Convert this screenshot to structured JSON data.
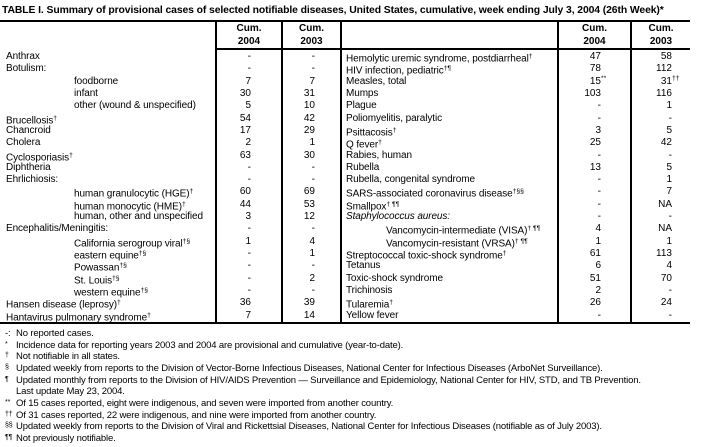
{
  "title": "TABLE I. Summary of provisional cases of selected notifiable diseases, United States, cumulative, week ending July 3, 2004 (26th Week)*",
  "columns": {
    "cum": "Cum.",
    "y2004": "2004",
    "y2003": "2003"
  },
  "left_table": {
    "rows": [
      {
        "name": "Anthrax",
        "nsup": "",
        "ind": 0,
        "it": 0,
        "c1": [
          "-",
          ""
        ],
        "c2": [
          "-",
          ""
        ]
      },
      {
        "name": "Botulism:",
        "nsup": "",
        "ind": 0,
        "it": 0,
        "c1": [
          "-",
          ""
        ],
        "c2": [
          "-",
          ""
        ]
      },
      {
        "name": "foodborne",
        "nsup": "",
        "ind": 1,
        "it": 0,
        "c1": [
          "7",
          ""
        ],
        "c2": [
          "7",
          ""
        ]
      },
      {
        "name": "infant",
        "nsup": "",
        "ind": 1,
        "it": 0,
        "c1": [
          "30",
          ""
        ],
        "c2": [
          "31",
          ""
        ]
      },
      {
        "name": "other (wound & unspecified)",
        "nsup": "",
        "ind": 1,
        "it": 0,
        "c1": [
          "5",
          ""
        ],
        "c2": [
          "10",
          ""
        ]
      },
      {
        "name": "Brucellosis",
        "nsup": "†",
        "ind": 0,
        "it": 0,
        "c1": [
          "54",
          ""
        ],
        "c2": [
          "42",
          ""
        ]
      },
      {
        "name": "Chancroid",
        "nsup": "",
        "ind": 0,
        "it": 0,
        "c1": [
          "17",
          ""
        ],
        "c2": [
          "29",
          ""
        ]
      },
      {
        "name": "Cholera",
        "nsup": "",
        "ind": 0,
        "it": 0,
        "c1": [
          "2",
          ""
        ],
        "c2": [
          "1",
          ""
        ]
      },
      {
        "name": "Cyclosporiasis",
        "nsup": "†",
        "ind": 0,
        "it": 0,
        "c1": [
          "63",
          ""
        ],
        "c2": [
          "30",
          ""
        ]
      },
      {
        "name": "Diphtheria",
        "nsup": "",
        "ind": 0,
        "it": 0,
        "c1": [
          "-",
          ""
        ],
        "c2": [
          "-",
          ""
        ]
      },
      {
        "name": "Ehrlichiosis:",
        "nsup": "",
        "ind": 0,
        "it": 0,
        "c1": [
          "-",
          ""
        ],
        "c2": [
          "-",
          ""
        ]
      },
      {
        "name": "human granulocytic (HGE)",
        "nsup": "†",
        "ind": 1,
        "it": 0,
        "c1": [
          "60",
          ""
        ],
        "c2": [
          "69",
          ""
        ]
      },
      {
        "name": "human monocytic (HME)",
        "nsup": "†",
        "ind": 1,
        "it": 0,
        "c1": [
          "44",
          ""
        ],
        "c2": [
          "53",
          ""
        ]
      },
      {
        "name": "human, other and unspecified",
        "nsup": "",
        "ind": 1,
        "it": 0,
        "c1": [
          "3",
          ""
        ],
        "c2": [
          "12",
          ""
        ]
      },
      {
        "name": "Encephalitis/Meningitis:",
        "nsup": "",
        "ind": 0,
        "it": 0,
        "c1": [
          "-",
          ""
        ],
        "c2": [
          "-",
          ""
        ]
      },
      {
        "name": "California serogroup viral",
        "nsup": "†§",
        "ind": 1,
        "it": 0,
        "c1": [
          "1",
          ""
        ],
        "c2": [
          "4",
          ""
        ]
      },
      {
        "name": "eastern equine",
        "nsup": "†§",
        "ind": 1,
        "it": 0,
        "c1": [
          "-",
          ""
        ],
        "c2": [
          "1",
          ""
        ]
      },
      {
        "name": "Powassan",
        "nsup": "†§",
        "ind": 1,
        "it": 0,
        "c1": [
          "-",
          ""
        ],
        "c2": [
          "-",
          ""
        ]
      },
      {
        "name": "St. Louis",
        "nsup": "†§",
        "ind": 1,
        "it": 0,
        "c1": [
          "-",
          ""
        ],
        "c2": [
          "2",
          ""
        ]
      },
      {
        "name": "western equine",
        "nsup": "†§",
        "ind": 1,
        "it": 0,
        "c1": [
          "-",
          ""
        ],
        "c2": [
          "-",
          ""
        ]
      },
      {
        "name": "Hansen disease (leprosy)",
        "nsup": "†",
        "ind": 0,
        "it": 0,
        "c1": [
          "36",
          ""
        ],
        "c2": [
          "39",
          ""
        ]
      },
      {
        "name": "Hantavirus pulmonary syndrome",
        "nsup": "†",
        "ind": 0,
        "it": 0,
        "c1": [
          "7",
          ""
        ],
        "c2": [
          "14",
          ""
        ]
      }
    ]
  },
  "right_table": {
    "rows": [
      {
        "name": "Hemolytic uremic syndrome, postdiarrheal",
        "nsup": "†",
        "ind": 0,
        "it": 0,
        "c1": [
          "47",
          ""
        ],
        "c2": [
          "58",
          ""
        ]
      },
      {
        "name": "HIV infection, pediatric",
        "nsup": "†¶",
        "ind": 0,
        "it": 0,
        "c1": [
          "78",
          ""
        ],
        "c2": [
          "112",
          ""
        ]
      },
      {
        "name": "Measles, total",
        "nsup": "",
        "ind": 0,
        "it": 0,
        "c1": [
          "15",
          "**"
        ],
        "c2": [
          "31",
          "††"
        ]
      },
      {
        "name": "Mumps",
        "nsup": "",
        "ind": 0,
        "it": 0,
        "c1": [
          "103",
          ""
        ],
        "c2": [
          "116",
          ""
        ]
      },
      {
        "name": "Plague",
        "nsup": "",
        "ind": 0,
        "it": 0,
        "c1": [
          "-",
          ""
        ],
        "c2": [
          "1",
          ""
        ]
      },
      {
        "name": "Poliomyelitis, paralytic",
        "nsup": "",
        "ind": 0,
        "it": 0,
        "c1": [
          "-",
          ""
        ],
        "c2": [
          "-",
          ""
        ]
      },
      {
        "name": "Psittacosis",
        "nsup": "†",
        "ind": 0,
        "it": 0,
        "c1": [
          "3",
          ""
        ],
        "c2": [
          "5",
          ""
        ]
      },
      {
        "name": "Q fever",
        "nsup": "†",
        "ind": 0,
        "it": 0,
        "c1": [
          "25",
          ""
        ],
        "c2": [
          "42",
          ""
        ]
      },
      {
        "name": "Rabies, human",
        "nsup": "",
        "ind": 0,
        "it": 0,
        "c1": [
          "-",
          ""
        ],
        "c2": [
          "-",
          ""
        ]
      },
      {
        "name": "Rubella",
        "nsup": "",
        "ind": 0,
        "it": 0,
        "c1": [
          "13",
          ""
        ],
        "c2": [
          "5",
          ""
        ]
      },
      {
        "name": "Rubella, congenital syndrome",
        "nsup": "",
        "ind": 0,
        "it": 0,
        "c1": [
          "-",
          ""
        ],
        "c2": [
          "1",
          ""
        ]
      },
      {
        "name": "SARS-associated coronavirus disease",
        "nsup": "†§§",
        "ind": 0,
        "it": 0,
        "c1": [
          "-",
          ""
        ],
        "c2": [
          "7",
          ""
        ]
      },
      {
        "name": "Smallpox",
        "nsup": "† ¶¶",
        "ind": 0,
        "it": 0,
        "c1": [
          "-",
          ""
        ],
        "c2": [
          "NA",
          ""
        ]
      },
      {
        "name": "Staphylococcus aureus:",
        "nsup": "",
        "ind": 0,
        "it": 1,
        "c1": [
          "-",
          ""
        ],
        "c2": [
          "-",
          ""
        ]
      },
      {
        "name": "Vancomycin-intermediate (VISA)",
        "nsup": "† ¶¶",
        "ind": 1,
        "it": 0,
        "c1": [
          "4",
          ""
        ],
        "c2": [
          "NA",
          ""
        ]
      },
      {
        "name": "Vancomycin-resistant (VRSA)",
        "nsup": "† ¶¶",
        "ind": 1,
        "it": 0,
        "c1": [
          "1",
          ""
        ],
        "c2": [
          "1",
          ""
        ]
      },
      {
        "name": "Streptococcal toxic-shock syndrome",
        "nsup": "†",
        "ind": 0,
        "it": 0,
        "c1": [
          "61",
          ""
        ],
        "c2": [
          "113",
          ""
        ]
      },
      {
        "name": "Tetanus",
        "nsup": "",
        "ind": 0,
        "it": 0,
        "c1": [
          "6",
          ""
        ],
        "c2": [
          "4",
          ""
        ]
      },
      {
        "name": "Toxic-shock syndrome",
        "nsup": "",
        "ind": 0,
        "it": 0,
        "c1": [
          "51",
          ""
        ],
        "c2": [
          "70",
          ""
        ]
      },
      {
        "name": "Trichinosis",
        "nsup": "",
        "ind": 0,
        "it": 0,
        "c1": [
          "2",
          ""
        ],
        "c2": [
          "-",
          ""
        ]
      },
      {
        "name": "Tularemia",
        "nsup": "†",
        "ind": 0,
        "it": 0,
        "c1": [
          "26",
          ""
        ],
        "c2": [
          "24",
          ""
        ]
      },
      {
        "name": "Yellow fever",
        "nsup": "",
        "ind": 0,
        "it": 0,
        "c1": [
          "-",
          ""
        ],
        "c2": [
          "-",
          ""
        ]
      }
    ]
  },
  "footnotes": [
    {
      "marker": "-:",
      "sup": 0,
      "text": "No reported cases."
    },
    {
      "marker": "*",
      "sup": 1,
      "text": "Incidence data for reporting years 2003 and 2004 are provisional and cumulative (year-to-date)."
    },
    {
      "marker": "†",
      "sup": 1,
      "text": "Not notifiable in all states."
    },
    {
      "marker": "§",
      "sup": 1,
      "text": "Updated weekly from reports to the Division of Vector-Borne Infectious Diseases, National Center for Infectious Diseases (ArboNet Surveillance)."
    },
    {
      "marker": "¶",
      "sup": 1,
      "text": "Updated monthly from reports to the Division of HIV/AIDS Prevention — Surveillance and Epidemiology, National Center for HIV, STD, and TB Prevention."
    },
    {
      "marker": "",
      "sup": 0,
      "text": "Last update May 23, 2004."
    },
    {
      "marker": "**",
      "sup": 1,
      "text": "Of 15 cases reported, eight were indigenous, and seven were imported from another country."
    },
    {
      "marker": "††",
      "sup": 1,
      "text": "Of 31 cases reported, 22 were indigenous, and nine were imported from another country."
    },
    {
      "marker": "§§",
      "sup": 1,
      "text": "Updated weekly from reports to the Division of Viral and Rickettsial Diseases, National Center for Infectious Diseases (notifiable as of July 2003)."
    },
    {
      "marker": "¶¶",
      "sup": 1,
      "text": "Not previously notifiable."
    }
  ],
  "colors": {
    "text": "#000000",
    "background": "#ffffff",
    "border": "#000000"
  }
}
